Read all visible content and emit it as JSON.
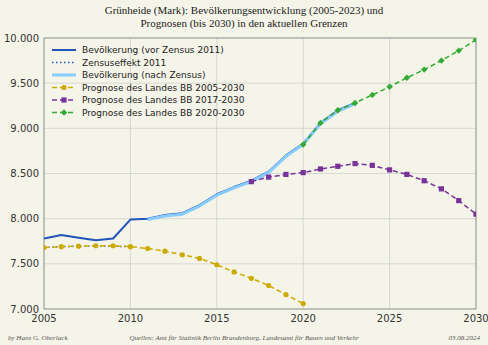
{
  "chart_data": {
    "type": "line",
    "title": "Grünheide (Mark):  Bevölkerungsentwicklung (2005-2023) und\nPrognosen (bis 2030) in den aktuellen Grenzen",
    "annotations": [
      "by Hans G. Oberlack",
      "Quellen: Amt für Statistik Berlin Brandenburg, Landesamt für Bauen und Verkehr",
      "03.08.2024"
    ],
    "xlim": [
      2005,
      2030
    ],
    "ylim": [
      7000,
      10000
    ],
    "xticks": [
      2005,
      2010,
      2015,
      2020,
      2025,
      2030
    ],
    "yticks": [
      {
        "value": 7000,
        "label": "7.000"
      },
      {
        "value": 7500,
        "label": "7.500"
      },
      {
        "value": 8000,
        "label": "8.000"
      },
      {
        "value": 8500,
        "label": "8.500"
      },
      {
        "value": 9000,
        "label": "9.000"
      },
      {
        "value": 9500,
        "label": "9.500"
      },
      {
        "value": 10000,
        "label": "10.000"
      }
    ],
    "grid": true,
    "legend": "upper left",
    "series": [
      {
        "name": "Bevölkerung (vor Zensus 2011)",
        "color": "#2255bb",
        "line_style": "solid",
        "x": [
          2005,
          2006,
          2007,
          2008,
          2009,
          2010,
          2011,
          2012,
          2013,
          2014,
          2015,
          2016,
          2017,
          2018,
          2019,
          2020,
          2021,
          2022,
          2023
        ],
        "values": [
          7780,
          7820,
          7790,
          7760,
          7780,
          7990,
          8000,
          8040,
          8060,
          8150,
          8270,
          8350,
          8420,
          8520,
          8700,
          8830,
          9060,
          9200,
          9280
        ]
      },
      {
        "name": "Zensuseffekt 2011",
        "color": "#2255bb",
        "line_style": "dotted",
        "x": [
          2005,
          2006,
          2007,
          2008,
          2009,
          2010
        ],
        "values": [
          7680,
          7690,
          7695,
          7700,
          7695,
          7690
        ]
      },
      {
        "name": "Bevölkerung (nach Zensus)",
        "color": "#88ccff",
        "line_style": "solid",
        "x": [
          2011,
          2012,
          2013,
          2014,
          2015,
          2016,
          2017,
          2018,
          2019,
          2020,
          2021,
          2022,
          2023
        ],
        "values": [
          7990,
          8030,
          8050,
          8140,
          8260,
          8340,
          8410,
          8510,
          8690,
          8820,
          9050,
          9190,
          9270
        ]
      },
      {
        "name": "Prognose des Landes BB 2005-2030",
        "color": "#ccaa00",
        "line_style": "dashed",
        "marker": "circle",
        "x": [
          2005,
          2006,
          2007,
          2008,
          2009,
          2010,
          2011,
          2012,
          2013,
          2014,
          2015,
          2016,
          2017,
          2018,
          2019,
          2020
        ],
        "values": [
          7680,
          7690,
          7695,
          7700,
          7700,
          7690,
          7670,
          7640,
          7600,
          7560,
          7490,
          7410,
          7340,
          7260,
          7160,
          7060
        ]
      },
      {
        "name": "Prognose des Landes BB 2017-2030",
        "color": "#773399",
        "line_style": "dashed",
        "marker": "square",
        "x": [
          2017,
          2018,
          2019,
          2020,
          2021,
          2022,
          2023,
          2024,
          2025,
          2026,
          2027,
          2028,
          2029,
          2030
        ],
        "values": [
          8410,
          8460,
          8490,
          8510,
          8550,
          8580,
          8610,
          8590,
          8540,
          8490,
          8420,
          8330,
          8200,
          8050
        ]
      },
      {
        "name": "Prognose des Landes BB 2020-2030",
        "color": "#33aa33",
        "line_style": "dashed",
        "marker": "diamond",
        "x": [
          2020,
          2021,
          2022,
          2023,
          2024,
          2025,
          2026,
          2027,
          2028,
          2029,
          2030
        ],
        "values": [
          8820,
          9060,
          9200,
          9280,
          9370,
          9460,
          9560,
          9650,
          9750,
          9860,
          9980
        ]
      }
    ]
  }
}
